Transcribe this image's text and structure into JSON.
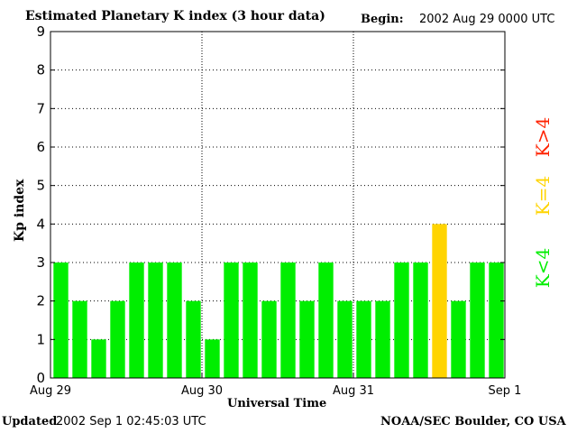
{
  "header": {
    "title": "Estimated Planetary K index (3 hour data)",
    "begin_label": "Begin:",
    "begin_value": "2002 Aug 29 0000 UTC"
  },
  "footer": {
    "updated_label": "Updated",
    "updated_value": "2002 Sep  1 02:45:03 UTC",
    "credit": "NOAA/SEC Boulder, CO USA"
  },
  "legend": {
    "low": "K<4",
    "mid": "K=4",
    "high": "K>4"
  },
  "colors": {
    "low": "#00ee00",
    "mid": "#ffd400",
    "high": "#ff2200"
  },
  "chart_data": {
    "type": "bar",
    "title": "Estimated Planetary K index (3 hour data)",
    "xlabel": "Universal Time",
    "ylabel": "Kp index",
    "ylim": [
      0,
      9
    ],
    "yticks": [
      0,
      1,
      2,
      3,
      4,
      5,
      6,
      7,
      8,
      9
    ],
    "x_tick_labels": [
      "Aug 29",
      "Aug 30",
      "Aug 31",
      "Sep 1"
    ],
    "day_dividers": true,
    "grid": "horizontal dotted",
    "values": [
      3,
      2,
      1,
      2,
      3,
      3,
      3,
      2,
      1,
      3,
      3,
      2,
      3,
      2,
      3,
      2,
      2,
      2,
      3,
      3,
      4,
      2,
      3,
      3
    ]
  }
}
